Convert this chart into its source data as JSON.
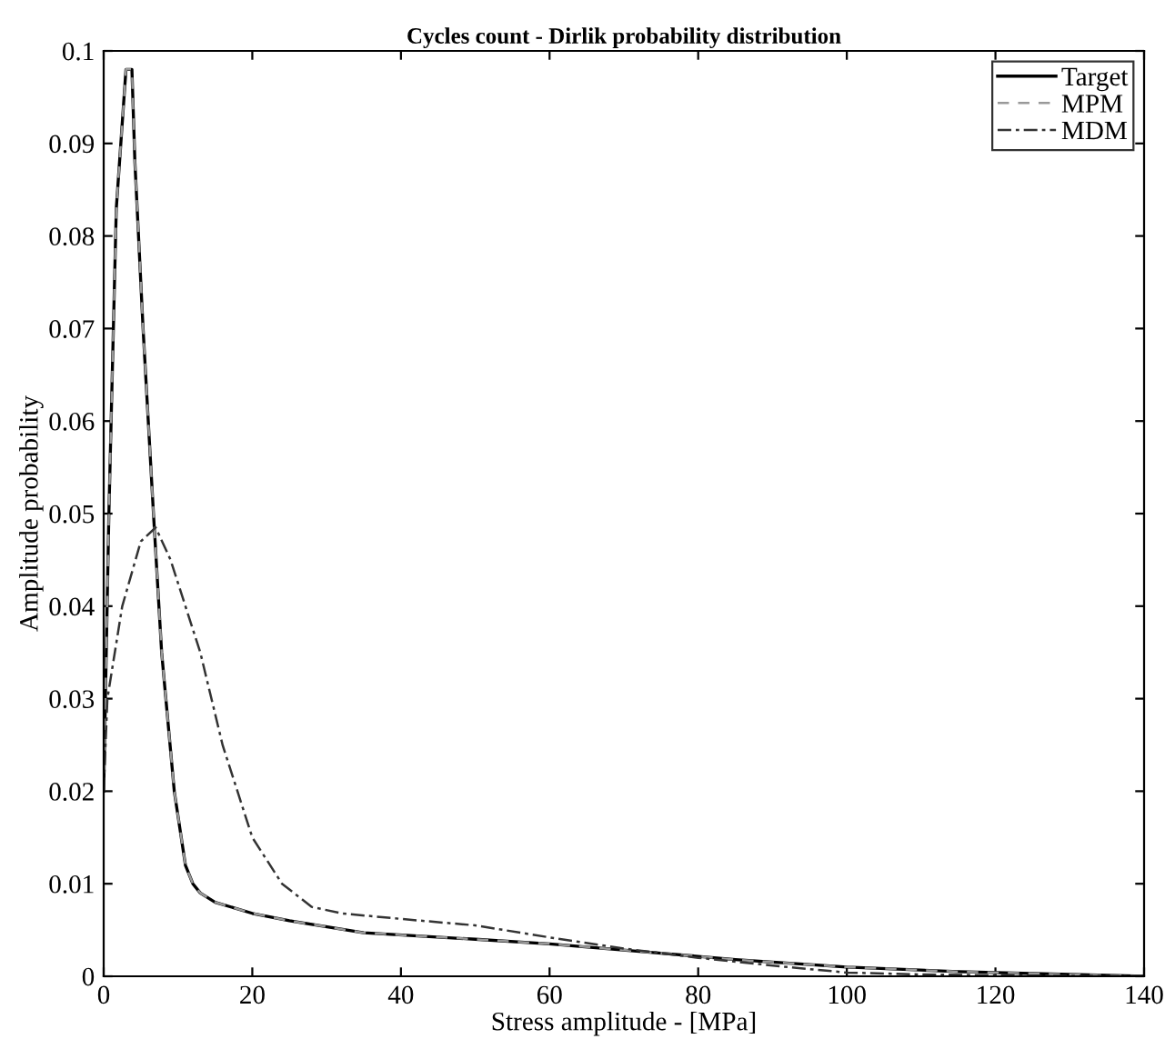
{
  "chart_data": {
    "type": "line",
    "title": "Cycles count - Dirlik probability distribution",
    "xlabel": "Stress amplitude - [MPa]",
    "ylabel": "Amplitude probability",
    "xlim": [
      0,
      140
    ],
    "xticks": [
      0,
      20,
      40,
      60,
      80,
      100,
      120,
      140
    ],
    "ylim": [
      0,
      0.1
    ],
    "yticks": [
      0,
      0.01,
      0.02,
      0.03,
      0.04,
      0.05,
      0.06,
      0.07,
      0.08,
      0.09,
      0.1
    ],
    "grid": false,
    "legend": "top right",
    "series": [
      {
        "name": "Target",
        "color": "#000000",
        "line_style": "solid",
        "x": [
          0,
          0.7,
          1.7,
          3,
          3.8,
          4.2,
          5.3,
          6.7,
          7.8,
          9.5,
          11,
          12,
          13,
          15,
          20,
          25,
          35,
          50,
          60,
          75,
          85,
          100,
          115,
          130,
          140
        ],
        "values": [
          0.02,
          0.05,
          0.083,
          0.098,
          0.098,
          0.088,
          0.07,
          0.05,
          0.035,
          0.02,
          0.012,
          0.01,
          0.009,
          0.008,
          0.0068,
          0.006,
          0.0047,
          0.004,
          0.0035,
          0.0025,
          0.0018,
          0.001,
          0.0005,
          0.0002,
          0
        ]
      },
      {
        "name": "MPM",
        "color": "#999999",
        "line_style": "dashed",
        "x": [
          0,
          0.7,
          1.7,
          3,
          3.8,
          4.2,
          5.3,
          6.7,
          7.8,
          9.5,
          11,
          12,
          13,
          15,
          20,
          25,
          35,
          50,
          60,
          75,
          85,
          100,
          115,
          130,
          140
        ],
        "values": [
          0.02,
          0.05,
          0.083,
          0.098,
          0.098,
          0.088,
          0.07,
          0.05,
          0.035,
          0.02,
          0.012,
          0.01,
          0.009,
          0.008,
          0.0068,
          0.006,
          0.0047,
          0.004,
          0.0035,
          0.0025,
          0.0018,
          0.001,
          0.0005,
          0.0002,
          0
        ]
      },
      {
        "name": "MDM",
        "color": "#333333",
        "line_style": "dashdot",
        "x": [
          0,
          0.5,
          2.5,
          5,
          7,
          9,
          11,
          13,
          16,
          20,
          24,
          28,
          32,
          40,
          50,
          60,
          70,
          80,
          92,
          100,
          110,
          120,
          140
        ],
        "values": [
          0.02,
          0.03,
          0.04,
          0.047,
          0.0485,
          0.045,
          0.04,
          0.035,
          0.025,
          0.015,
          0.01,
          0.0075,
          0.0068,
          0.0062,
          0.0055,
          0.0042,
          0.003,
          0.002,
          0.001,
          0.0004,
          0.0002,
          0.0001,
          0
        ]
      }
    ]
  }
}
